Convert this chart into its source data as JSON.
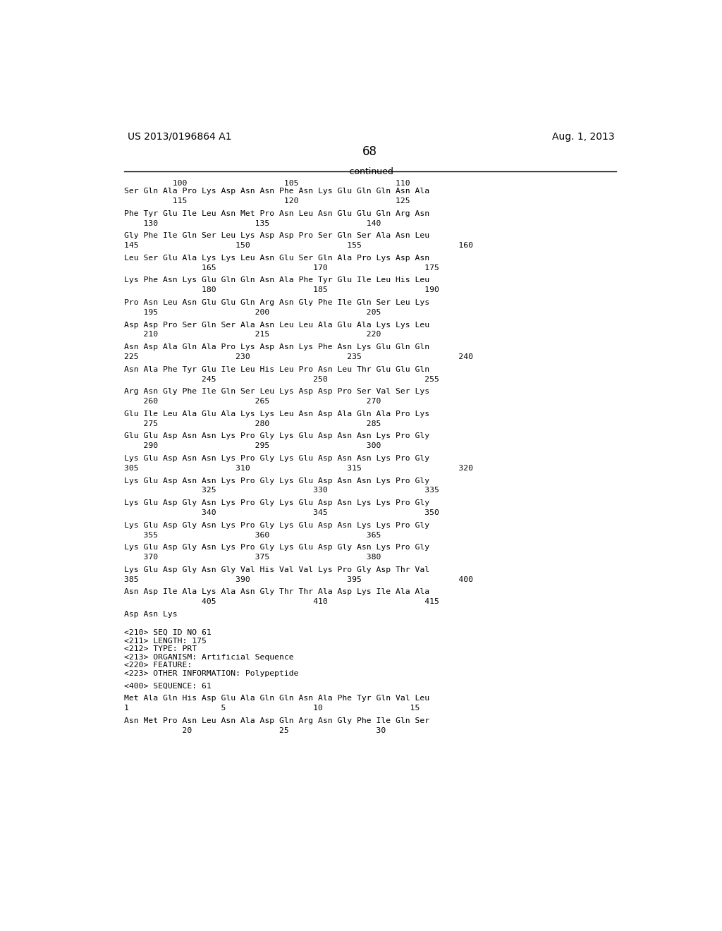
{
  "background_color": "#ffffff",
  "header_left": "US 2013/0196864 A1",
  "header_right": "Aug. 1, 2013",
  "page_number": "68",
  "continued_label": "-continued",
  "font_family": "DejaVu Sans Mono",
  "body_lines": [
    {
      "type": "ruler_numbers",
      "text": "          100                    105                    110"
    },
    {
      "type": "sequence",
      "text": "Ser Gln Ala Pro Lys Asp Asn Asn Phe Asn Lys Glu Gln Gln Asn Ala"
    },
    {
      "type": "numbers",
      "text": "          115                    120                    125"
    },
    {
      "type": "blank"
    },
    {
      "type": "sequence",
      "text": "Phe Tyr Glu Ile Leu Asn Met Pro Asn Leu Asn Glu Glu Gln Arg Asn"
    },
    {
      "type": "numbers",
      "text": "    130                    135                    140"
    },
    {
      "type": "blank"
    },
    {
      "type": "sequence",
      "text": "Gly Phe Ile Gln Ser Leu Lys Asp Asp Pro Ser Gln Ser Ala Asn Leu"
    },
    {
      "type": "numbers",
      "text": "145                    150                    155                    160"
    },
    {
      "type": "blank"
    },
    {
      "type": "sequence",
      "text": "Leu Ser Glu Ala Lys Lys Leu Asn Glu Ser Gln Ala Pro Lys Asp Asn"
    },
    {
      "type": "numbers",
      "text": "                165                    170                    175"
    },
    {
      "type": "blank"
    },
    {
      "type": "sequence",
      "text": "Lys Phe Asn Lys Glu Gln Gln Asn Ala Phe Tyr Glu Ile Leu His Leu"
    },
    {
      "type": "numbers",
      "text": "                180                    185                    190"
    },
    {
      "type": "blank"
    },
    {
      "type": "sequence",
      "text": "Pro Asn Leu Asn Glu Glu Gln Arg Asn Gly Phe Ile Gln Ser Leu Lys"
    },
    {
      "type": "numbers",
      "text": "    195                    200                    205"
    },
    {
      "type": "blank"
    },
    {
      "type": "sequence",
      "text": "Asp Asp Pro Ser Gln Ser Ala Asn Leu Leu Ala Glu Ala Lys Lys Leu"
    },
    {
      "type": "numbers",
      "text": "    210                    215                    220"
    },
    {
      "type": "blank"
    },
    {
      "type": "sequence",
      "text": "Asn Asp Ala Gln Ala Pro Lys Asp Asn Lys Phe Asn Lys Glu Gln Gln"
    },
    {
      "type": "numbers",
      "text": "225                    230                    235                    240"
    },
    {
      "type": "blank"
    },
    {
      "type": "sequence",
      "text": "Asn Ala Phe Tyr Glu Ile Leu His Leu Pro Asn Leu Thr Glu Glu Gln"
    },
    {
      "type": "numbers",
      "text": "                245                    250                    255"
    },
    {
      "type": "blank"
    },
    {
      "type": "sequence",
      "text": "Arg Asn Gly Phe Ile Gln Ser Leu Lys Asp Asp Pro Ser Val Ser Lys"
    },
    {
      "type": "numbers",
      "text": "    260                    265                    270"
    },
    {
      "type": "blank"
    },
    {
      "type": "sequence",
      "text": "Glu Ile Leu Ala Glu Ala Lys Lys Leu Asn Asp Ala Gln Ala Pro Lys"
    },
    {
      "type": "numbers",
      "text": "    275                    280                    285"
    },
    {
      "type": "blank"
    },
    {
      "type": "sequence",
      "text": "Glu Glu Asp Asn Asn Lys Pro Gly Lys Glu Asp Asn Asn Lys Pro Gly"
    },
    {
      "type": "numbers",
      "text": "    290                    295                    300"
    },
    {
      "type": "blank"
    },
    {
      "type": "sequence",
      "text": "Lys Glu Asp Asn Asn Lys Pro Gly Lys Glu Asp Asn Asn Lys Pro Gly"
    },
    {
      "type": "numbers",
      "text": "305                    310                    315                    320"
    },
    {
      "type": "blank"
    },
    {
      "type": "sequence",
      "text": "Lys Glu Asp Asn Asn Lys Pro Gly Lys Glu Asp Asn Asn Lys Pro Gly"
    },
    {
      "type": "numbers",
      "text": "                325                    330                    335"
    },
    {
      "type": "blank"
    },
    {
      "type": "sequence",
      "text": "Lys Glu Asp Gly Asn Lys Pro Gly Lys Glu Asp Asn Lys Lys Pro Gly"
    },
    {
      "type": "numbers",
      "text": "                340                    345                    350"
    },
    {
      "type": "blank"
    },
    {
      "type": "sequence",
      "text": "Lys Glu Asp Gly Asn Lys Pro Gly Lys Glu Asp Asn Lys Lys Pro Gly"
    },
    {
      "type": "numbers",
      "text": "    355                    360                    365"
    },
    {
      "type": "blank"
    },
    {
      "type": "sequence",
      "text": "Lys Glu Asp Gly Asn Lys Pro Gly Lys Glu Asp Gly Asn Lys Pro Gly"
    },
    {
      "type": "numbers",
      "text": "    370                    375                    380"
    },
    {
      "type": "blank"
    },
    {
      "type": "sequence",
      "text": "Lys Glu Asp Gly Asn Gly Val His Val Val Lys Pro Gly Asp Thr Val"
    },
    {
      "type": "numbers",
      "text": "385                    390                    395                    400"
    },
    {
      "type": "blank"
    },
    {
      "type": "sequence",
      "text": "Asn Asp Ile Ala Lys Ala Asn Gly Thr Thr Ala Asp Lys Ile Ala Ala"
    },
    {
      "type": "numbers",
      "text": "                405                    410                    415"
    },
    {
      "type": "blank"
    },
    {
      "type": "sequence",
      "text": "Asp Asn Lys"
    },
    {
      "type": "blank"
    },
    {
      "type": "blank"
    },
    {
      "type": "meta",
      "text": "<210> SEQ ID NO 61"
    },
    {
      "type": "meta",
      "text": "<211> LENGTH: 175"
    },
    {
      "type": "meta",
      "text": "<212> TYPE: PRT"
    },
    {
      "type": "meta",
      "text": "<213> ORGANISM: Artificial Sequence"
    },
    {
      "type": "meta",
      "text": "<220> FEATURE:"
    },
    {
      "type": "meta",
      "text": "<223> OTHER INFORMATION: Polypeptide"
    },
    {
      "type": "blank"
    },
    {
      "type": "meta",
      "text": "<400> SEQUENCE: 61"
    },
    {
      "type": "blank"
    },
    {
      "type": "sequence",
      "text": "Met Ala Gln His Asp Glu Ala Gln Gln Asn Ala Phe Tyr Gln Val Leu"
    },
    {
      "type": "numbers",
      "text": "1                   5                  10                  15"
    },
    {
      "type": "blank"
    },
    {
      "type": "sequence",
      "text": "Asn Met Pro Asn Leu Asn Ala Asp Gln Arg Asn Gly Phe Ile Gln Ser"
    },
    {
      "type": "numbers",
      "text": "            20                  25                  30"
    }
  ]
}
